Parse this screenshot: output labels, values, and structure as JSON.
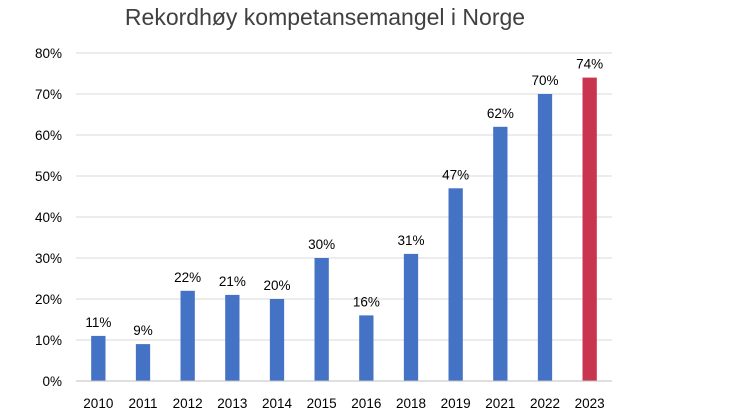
{
  "chart_data": {
    "type": "bar",
    "title": "Rekordhøy kompetansemangel i Norge",
    "xlabel": "",
    "ylabel": "",
    "categories": [
      "2010",
      "2011",
      "2012",
      "2013",
      "2014",
      "2015",
      "2016",
      "2018",
      "2019",
      "2021",
      "2022",
      "2023"
    ],
    "values": [
      11,
      9,
      22,
      21,
      20,
      30,
      16,
      31,
      47,
      62,
      70,
      74
    ],
    "data_labels": [
      "11%",
      "9%",
      "22%",
      "21%",
      "20%",
      "30%",
      "16%",
      "31%",
      "47%",
      "62%",
      "70%",
      "74%"
    ],
    "ylim": [
      0,
      80
    ],
    "yticks": [
      0,
      10,
      20,
      30,
      40,
      50,
      60,
      70,
      80
    ],
    "ytick_labels": [
      "0%",
      "10%",
      "20%",
      "30%",
      "40%",
      "50%",
      "60%",
      "70%",
      "80%"
    ],
    "grid": true,
    "legend": "none",
    "colors": {
      "bar": "#4472c4",
      "highlight": "#c9344f",
      "highlight_category": "2023"
    }
  }
}
